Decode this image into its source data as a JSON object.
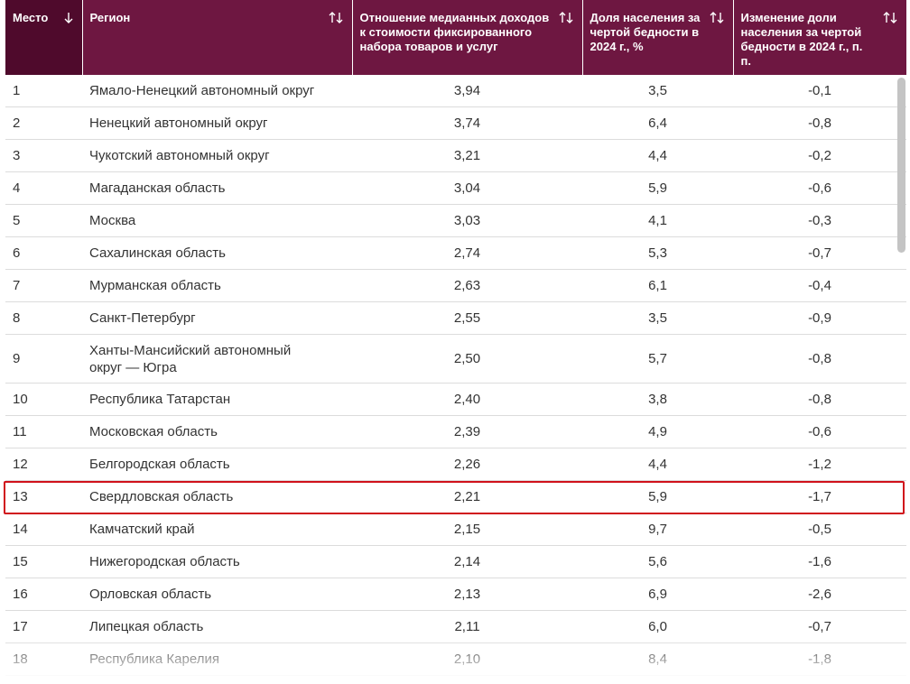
{
  "table": {
    "headers": [
      "Место",
      "Регион",
      "Отношение медианных доходов к стоимости фиксированного набора товаров и услуг",
      "Доля населения за чертой бедности в 2024 г., %",
      "Изменение доли населения за чертой бедности в 2024 г., п. п."
    ],
    "rows": [
      [
        "1",
        "Ямало-Ненецкий автономный округ",
        "3,94",
        "3,5",
        "-0,1"
      ],
      [
        "2",
        "Ненецкий автономный округ",
        "3,74",
        "6,4",
        "-0,8"
      ],
      [
        "3",
        "Чукотский автономный округ",
        "3,21",
        "4,4",
        "-0,2"
      ],
      [
        "4",
        "Магаданская область",
        "3,04",
        "5,9",
        "-0,6"
      ],
      [
        "5",
        "Москва",
        "3,03",
        "4,1",
        "-0,3"
      ],
      [
        "6",
        "Сахалинская область",
        "2,74",
        "5,3",
        "-0,7"
      ],
      [
        "7",
        "Мурманская область",
        "2,63",
        "6,1",
        "-0,4"
      ],
      [
        "8",
        "Санкт-Петербург",
        "2,55",
        "3,5",
        "-0,9"
      ],
      [
        "9",
        "Ханты-Мансийский автономный округ — Югра",
        "2,50",
        "5,7",
        "-0,8"
      ],
      [
        "10",
        "Республика Татарстан",
        "2,40",
        "3,8",
        "-0,8"
      ],
      [
        "11",
        "Московская область",
        "2,39",
        "4,9",
        "-0,6"
      ],
      [
        "12",
        "Белгородская область",
        "2,26",
        "4,4",
        "-1,2"
      ],
      [
        "13",
        "Свердловская область",
        "2,21",
        "5,9",
        "-1,7"
      ],
      [
        "14",
        "Камчатский край",
        "2,15",
        "9,7",
        "-0,5"
      ],
      [
        "15",
        "Нижегородская область",
        "2,14",
        "5,6",
        "-1,6"
      ],
      [
        "16",
        "Орловская область",
        "2,13",
        "6,9",
        "-2,6"
      ],
      [
        "17",
        "Липецкая область",
        "2,11",
        "6,0",
        "-0,7"
      ],
      [
        "18",
        "Республика Карелия",
        "2,10",
        "8,4",
        "-1,8"
      ]
    ]
  }
}
